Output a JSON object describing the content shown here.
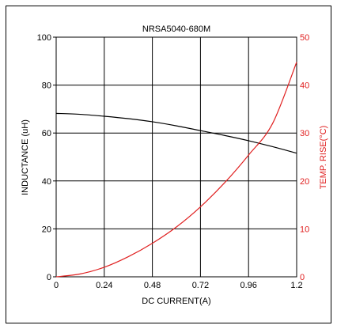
{
  "chart_data": {
    "type": "line",
    "title": "NRSA5040-680M",
    "xlabel": "DC CURRENT(A)",
    "ylabel": "INDUCTANCE (uH)",
    "ylabel_right": "TEMP. RISE(°C)",
    "xlim": [
      0,
      1.2
    ],
    "ylim": [
      0,
      100
    ],
    "ylim_right": [
      0,
      50
    ],
    "x_ticks": [
      "0",
      "0.24",
      "0.48",
      "0.72",
      "0.96",
      "1.2"
    ],
    "y_ticks": [
      "0",
      "20",
      "40",
      "60",
      "80",
      "100"
    ],
    "y_ticks_right": [
      "0",
      "10",
      "20",
      "30",
      "40",
      "50"
    ],
    "grid": true,
    "colors": {
      "inductance": "#000000",
      "temp_rise": "#e02020",
      "frame": "#000000"
    },
    "series": [
      {
        "axis": "left",
        "x": [
          0,
          0.12,
          0.24,
          0.36,
          0.48,
          0.6,
          0.72,
          0.84,
          0.96,
          1.08,
          1.2
        ],
        "values": [
          68.2,
          67.8,
          67.0,
          66.0,
          64.7,
          63.0,
          61.0,
          59.0,
          56.8,
          54.3,
          51.6
        ]
      },
      {
        "axis": "right",
        "x": [
          0,
          0.12,
          0.24,
          0.36,
          0.48,
          0.6,
          0.72,
          0.84,
          0.96,
          1.08,
          1.2
        ],
        "values": [
          0,
          0.6,
          2.0,
          4.2,
          7.0,
          10.4,
          14.6,
          19.6,
          25.4,
          32.0,
          44.8
        ]
      }
    ]
  }
}
